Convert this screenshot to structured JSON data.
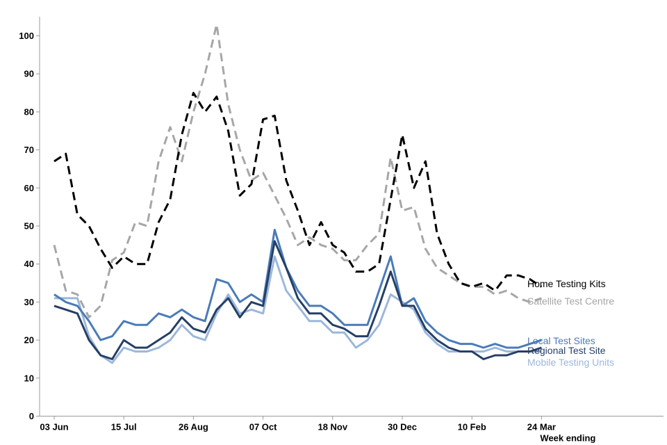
{
  "chart_data": {
    "type": "line",
    "xlabel": "Week ending",
    "ylabel": "",
    "ylim": [
      0,
      105
    ],
    "yticks": [
      "0",
      "10",
      "20",
      "30",
      "40",
      "50",
      "60",
      "70",
      "80",
      "90",
      "100"
    ],
    "xtick_labels": [
      "03 Jun",
      "15 Jul",
      "26 Aug",
      "07 Oct",
      "18 Nov",
      "30 Dec",
      "10 Feb",
      "24 Mar"
    ],
    "xtick_positions": [
      0,
      6,
      12,
      18,
      24,
      30,
      36,
      42
    ],
    "x_count": 43,
    "grid": false,
    "legend": "inline-right",
    "series": [
      {
        "name": "Home Testing Kits",
        "color": "#000000",
        "dash": true,
        "values": [
          67,
          69,
          53,
          50,
          44,
          39,
          42,
          40,
          40,
          51,
          57,
          74,
          85,
          80,
          84,
          75,
          58,
          61,
          78,
          79,
          62,
          54,
          45,
          51,
          45,
          43,
          38,
          38,
          40,
          57,
          74,
          60,
          67,
          48,
          40,
          35,
          34,
          35,
          33,
          37,
          37,
          36,
          34
        ]
      },
      {
        "name": "Satellite Test Centre",
        "color": "#a6a6a6",
        "dash": true,
        "values": [
          45,
          33,
          32,
          26,
          29,
          41,
          43,
          51,
          50,
          67,
          76,
          67,
          80,
          90,
          103,
          82,
          70,
          62,
          64,
          58,
          52,
          45,
          47,
          45,
          44,
          41,
          41,
          45,
          48,
          68,
          54,
          55,
          44,
          39,
          37,
          35,
          34,
          34,
          32,
          33,
          31,
          30,
          31
        ]
      },
      {
        "name": "Local Test Sites",
        "color": "#4a7bb7",
        "dash": false,
        "values": [
          32,
          30,
          29,
          25,
          20,
          21,
          25,
          24,
          24,
          27,
          26,
          28,
          26,
          25,
          36,
          35,
          30,
          32,
          30,
          49,
          39,
          33,
          29,
          29,
          27,
          24,
          24,
          24,
          33,
          42,
          29,
          31,
          25,
          22,
          20,
          19,
          19,
          18,
          19,
          18,
          18,
          19,
          20
        ]
      },
      {
        "name": "Regional Test Site",
        "color": "#253f66",
        "dash": false,
        "values": [
          29,
          28,
          27,
          20,
          16,
          15,
          20,
          18,
          18,
          20,
          22,
          26,
          23,
          22,
          28,
          31,
          26,
          30,
          29,
          46,
          39,
          31,
          27,
          27,
          24,
          23,
          21,
          21,
          29,
          38,
          29,
          29,
          23,
          20,
          18,
          17,
          17,
          15,
          16,
          16,
          17,
          17,
          18
        ]
      },
      {
        "name": "Mobile Testing Units",
        "color": "#9bb7db",
        "dash": false,
        "values": [
          31,
          31,
          31,
          21,
          16,
          14,
          18,
          17,
          17,
          18,
          20,
          24,
          21,
          20,
          27,
          32,
          27,
          28,
          27,
          42,
          33,
          29,
          25,
          25,
          22,
          22,
          18,
          20,
          24,
          32,
          30,
          28,
          22,
          19,
          17,
          17,
          17,
          17,
          18,
          17,
          17,
          17,
          17
        ]
      }
    ]
  }
}
